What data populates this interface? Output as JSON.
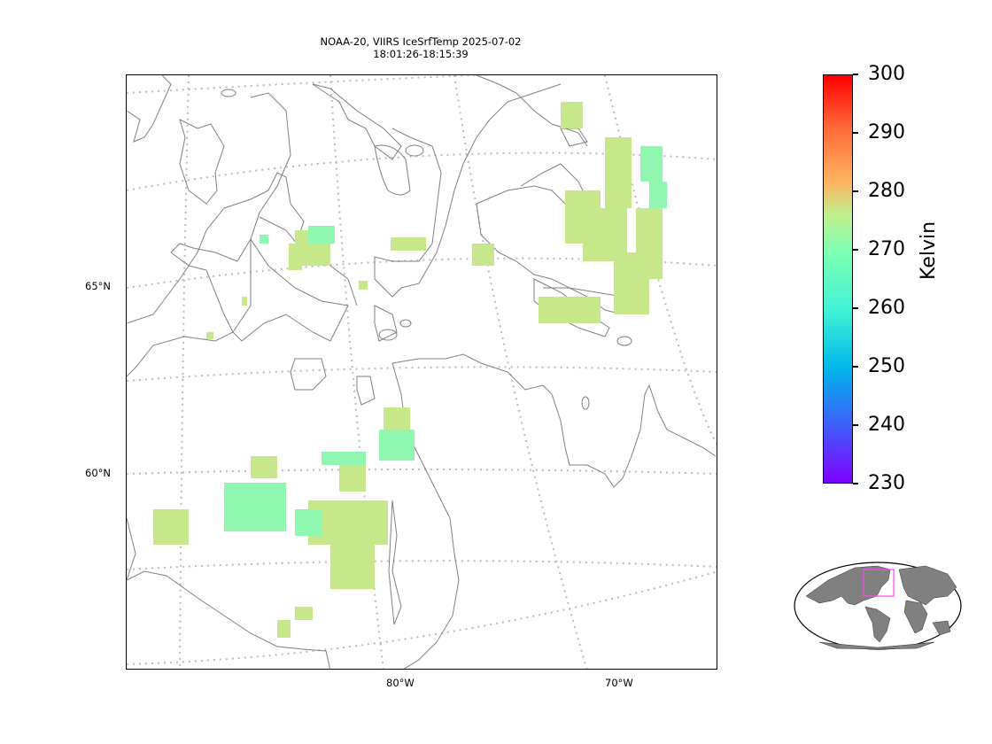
{
  "title": {
    "line1": "NOAA-20, VIIRS IceSrfTemp 2025-07-02",
    "line2": "18:01:26-18:15:39"
  },
  "map": {
    "lat_labels": [
      "65°N",
      "60°N"
    ],
    "lon_labels": [
      "80°W",
      "70°W"
    ],
    "coastline_color": "#808080",
    "gridline_color": "#bbbbbb",
    "data_color_warm": "#c6e88a",
    "data_color_cool": "#8ff7b0"
  },
  "colorbar": {
    "label": "Kelvin",
    "min": 230,
    "max": 300,
    "ticks": [
      "300",
      "290",
      "280",
      "270",
      "260",
      "250",
      "240",
      "230"
    ],
    "colormap": "rainbow"
  },
  "inset": {
    "land_color": "#808080",
    "extent_color": "#ff44ff"
  }
}
